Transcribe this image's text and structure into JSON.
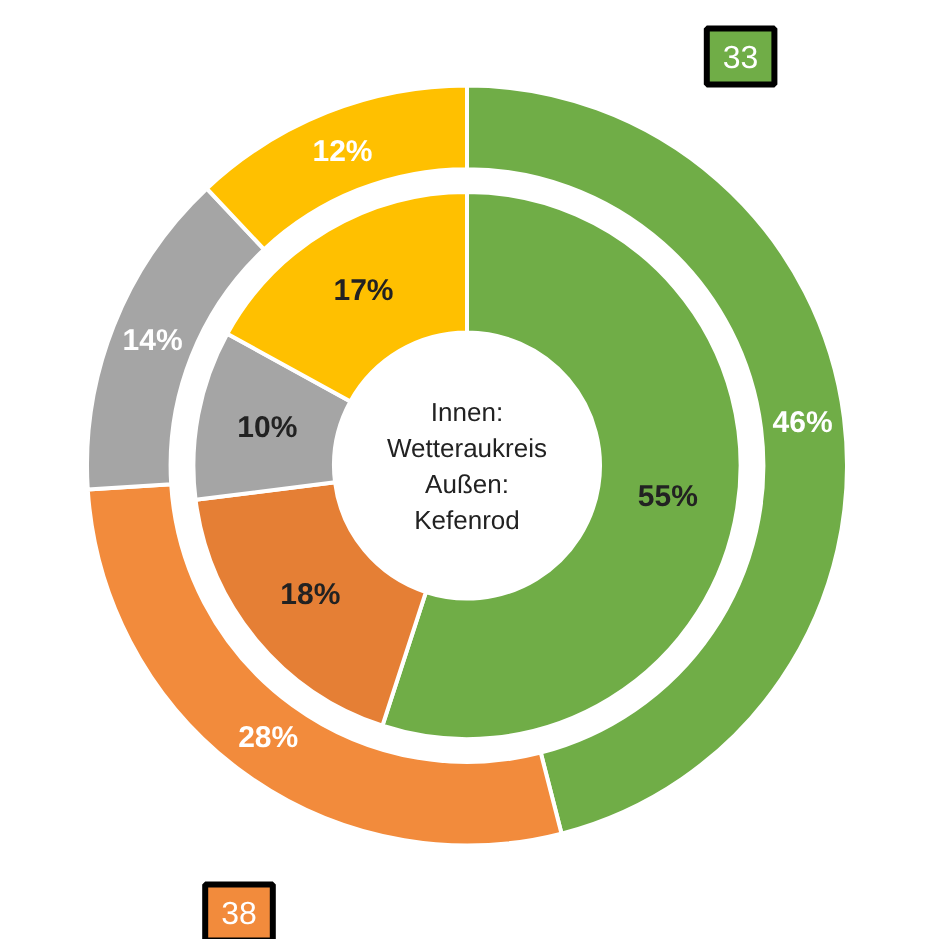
{
  "chart_data": {
    "type": "donut",
    "categories": [
      null,
      null,
      null,
      null
    ],
    "series": [
      {
        "values": [
          55,
          18,
          10,
          17
        ],
        "colors": [
          "#70ad47",
          "#e57f35",
          "#a5a5a5",
          "#ffc000"
        ],
        "value_labels": [
          "55%",
          "18%",
          "10%",
          "17%"
        ]
      },
      {
        "values": [
          46,
          28,
          14,
          12
        ],
        "colors": [
          "#70ad47",
          "#f28b3c",
          "#a5a5a5",
          "#ffc000"
        ],
        "value_labels": [
          "46%",
          "28%",
          "14%",
          "12%"
        ]
      }
    ],
    "data_labels": true,
    "annotations": [
      "Innen:\nWetteraukreis\nAußen:\nKefenrod",
      "33",
      "38"
    ]
  }
}
